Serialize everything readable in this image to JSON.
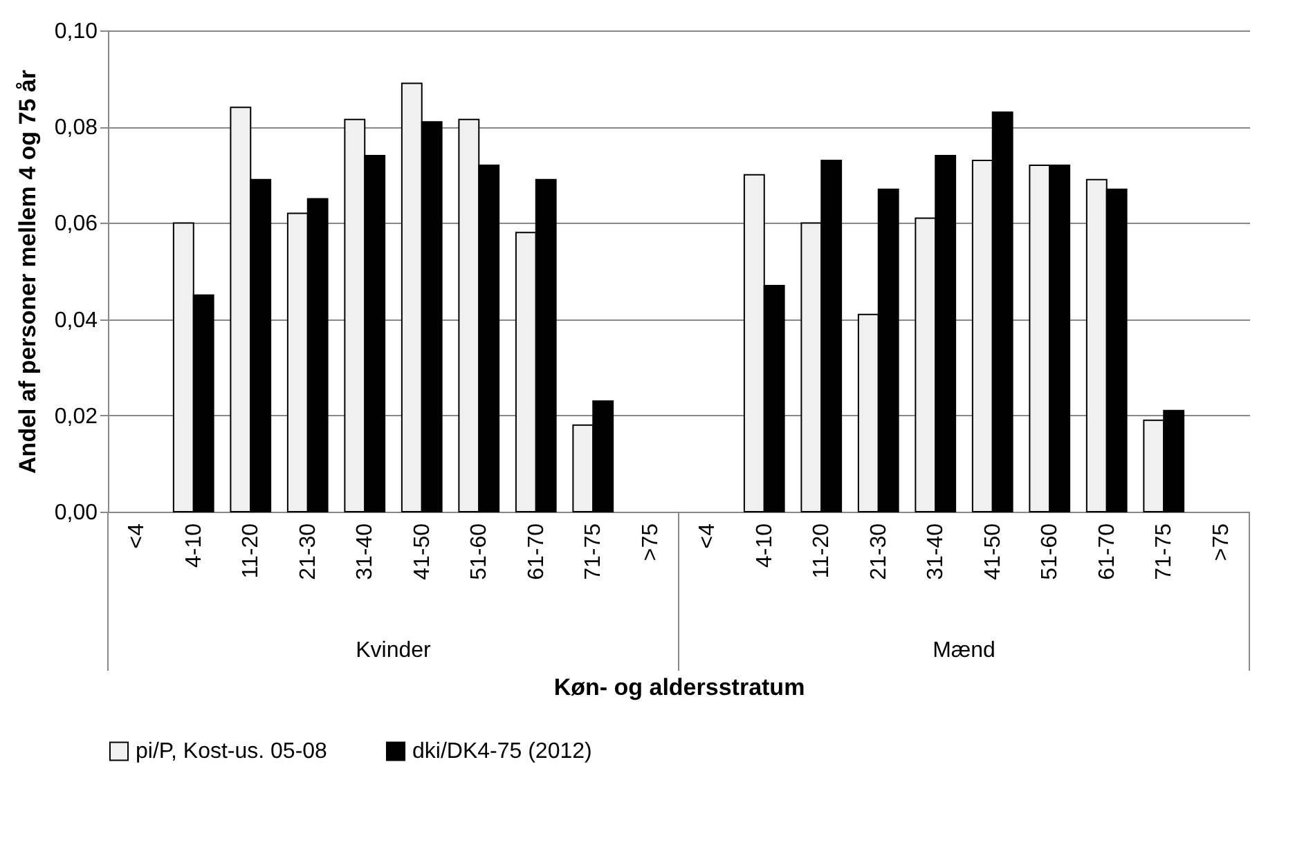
{
  "chart_data": {
    "type": "bar",
    "xlabel": "Køn- og aldersstratum",
    "ylabel": "Andel af personer mellem 4 og 75 år",
    "categories": [
      "<4",
      "4-10",
      "11-20",
      "21-30",
      "31-40",
      "41-50",
      "51-60",
      "61-70",
      "71-75",
      ">75",
      "<4",
      "4-10",
      "11-20",
      "21-30",
      "31-40",
      "41-50",
      "51-60",
      "61-70",
      "71-75",
      ">75"
    ],
    "annotations": [
      "Kvinder",
      "Mænd"
    ],
    "series": [
      {
        "name": "pi/P, Kost-us. 05-08",
        "color": "#f0f0f0",
        "values": [
          null,
          0.06,
          0.084,
          0.062,
          0.0815,
          0.089,
          0.0815,
          0.058,
          0.018,
          null,
          null,
          0.07,
          0.06,
          0.041,
          0.061,
          0.073,
          0.072,
          0.069,
          0.019,
          null
        ]
      },
      {
        "name": "dki/DK4-75 (2012)",
        "color": "#000000",
        "values": [
          null,
          0.045,
          0.069,
          0.065,
          0.074,
          0.081,
          0.072,
          0.069,
          0.023,
          null,
          null,
          0.047,
          0.073,
          0.067,
          0.074,
          0.083,
          0.072,
          0.067,
          0.021,
          null
        ]
      }
    ],
    "ylim": [
      0,
      0.1
    ],
    "yticks": [
      {
        "value": 0,
        "label": "0,00"
      },
      {
        "value": 0.02,
        "label": "0,02"
      },
      {
        "value": 0.04,
        "label": "0,04"
      },
      {
        "value": 0.06,
        "label": "0,06"
      },
      {
        "value": 0.08,
        "label": "0,08"
      },
      {
        "value": 0.1,
        "label": "0,10"
      }
    ],
    "grid": "y",
    "legend": "bottom"
  }
}
